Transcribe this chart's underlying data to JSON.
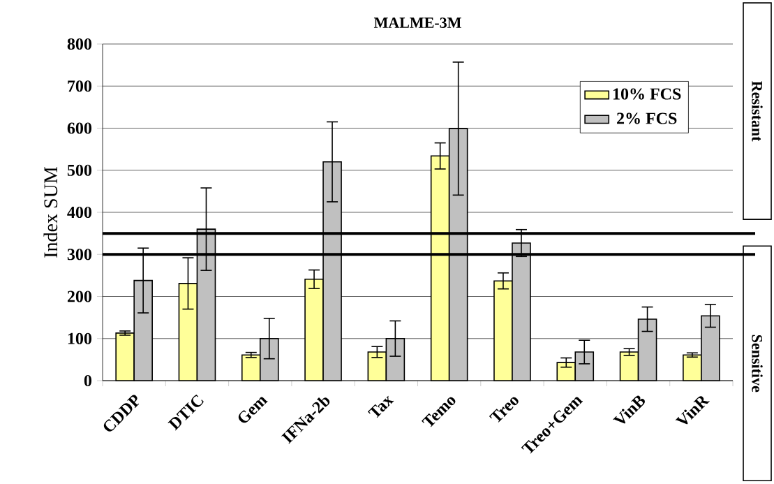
{
  "chart_data": {
    "type": "bar",
    "title": "MALME-3M",
    "ylabel": "Index SUM",
    "categories": [
      "CDDP",
      "DTIC",
      "Gem",
      "IFNa-2b",
      "Tax",
      "Temo",
      "Treo",
      "Treo+Gem",
      "VinB",
      "VinR"
    ],
    "series": [
      {
        "name": "10% FCS",
        "color": "#ffff99",
        "values": [
          113,
          231,
          61,
          241,
          68,
          534,
          237,
          43,
          68,
          61
        ],
        "errors": [
          5,
          61,
          6,
          22,
          13,
          31,
          19,
          11,
          8,
          5
        ]
      },
      {
        "name": "2% FCS",
        "color": "#c0c0c0",
        "values": [
          238,
          360,
          100,
          520,
          100,
          599,
          327,
          68,
          146,
          154
        ],
        "errors": [
          77,
          98,
          48,
          95,
          42,
          158,
          32,
          28,
          29,
          27
        ]
      }
    ],
    "ylim": [
      0,
      800
    ],
    "yticks": [
      0,
      100,
      200,
      300,
      400,
      500,
      600,
      700,
      800
    ],
    "grid": "y",
    "legend": "top right",
    "ref_lines": [
      {
        "axis": "y",
        "value": 350,
        "color": "#000000"
      },
      {
        "axis": "y",
        "value": 300,
        "color": "#000000"
      }
    ],
    "annotations": [
      "Resistant",
      "Sensitive"
    ]
  }
}
